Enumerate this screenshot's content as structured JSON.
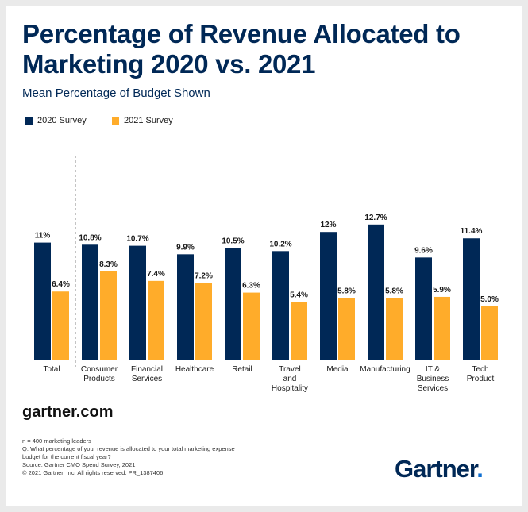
{
  "chart_data": {
    "type": "bar",
    "title": "Percentage of Revenue Allocated to Marketing 2020 vs. 2021",
    "subtitle": "Mean Percentage of Budget Shown",
    "categories": [
      [
        "Total"
      ],
      [
        "Consumer",
        "Products"
      ],
      [
        "Financial",
        "Services"
      ],
      [
        "Healthcare"
      ],
      [
        "Retail"
      ],
      [
        "Travel",
        "and",
        "Hospitality"
      ],
      [
        "Media"
      ],
      [
        "Manufacturing"
      ],
      [
        "IT &",
        "Business",
        "Services"
      ],
      [
        "Tech",
        "Product"
      ]
    ],
    "series": [
      {
        "name": "2020 Survey",
        "color": "#002856",
        "values": [
          11,
          10.8,
          10.7,
          9.9,
          10.5,
          10.2,
          12,
          12.7,
          9.6,
          11.4
        ],
        "labels": [
          "11%",
          "10.8%",
          "10.7%",
          "9.9%",
          "10.5%",
          "10.2%",
          "12%",
          "12.7%",
          "9.6%",
          "11.4%"
        ]
      },
      {
        "name": "2021 Survey",
        "color": "#ffac2a",
        "values": [
          6.4,
          8.3,
          7.4,
          7.2,
          6.3,
          5.4,
          5.8,
          5.8,
          5.9,
          5.0
        ],
        "labels": [
          "6.4%",
          "8.3%",
          "7.4%",
          "7.2%",
          "6.3%",
          "5.4%",
          "5.8%",
          "5.8%",
          "5.9%",
          "5.0%"
        ]
      }
    ],
    "ylim": [
      0,
      14
    ],
    "xlabel": "",
    "ylabel": "",
    "legend": "top-left",
    "grid": false
  },
  "footer": {
    "site": "gartner.com",
    "notes": [
      "n = 400 marketing leaders",
      "Q. What percentage of your revenue is allocated to your total marketing expense",
      "budget for the current fiscal year?",
      "Source: Gartner CMO Spend Survey, 2021",
      "© 2021 Gartner, Inc. All rights reserved. PR_1387406"
    ],
    "logo_text": "Gartner",
    "logo_dot": "."
  }
}
